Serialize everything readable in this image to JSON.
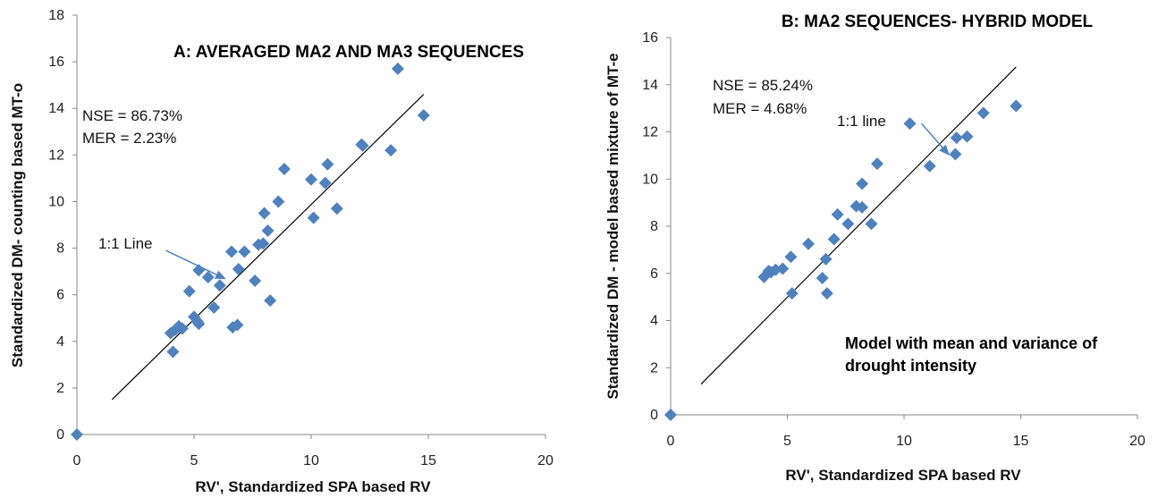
{
  "chart_data": [
    {
      "type": "scatter",
      "title": "A:   AVERAGED    MA2 AND MA3   SEQUENCES",
      "xlabel": "RV',  Standardized SPA based RV",
      "ylabel": "Standardized DM- counting based MT-o",
      "xlim": [
        0,
        20
      ],
      "ylim": [
        0,
        18
      ],
      "xticks": [
        "0",
        "5",
        "10",
        "15",
        "20"
      ],
      "yticks": [
        "0",
        "2",
        "4",
        "6",
        "8",
        "10",
        "12",
        "14",
        "16",
        "18"
      ],
      "grid": false,
      "marker_color": "#4f81bd",
      "stats": [
        "NSE = 86.73%",
        "MER = 2.23%"
      ],
      "line_label": "1:1 Line",
      "line_endpoints": [
        [
          1.5,
          1.5
        ],
        [
          14.8,
          14.6
        ]
      ],
      "arrow_from": [
        3.8,
        7.9
      ],
      "arrow_to": [
        6.3,
        6.7
      ],
      "points": [
        [
          0,
          0
        ],
        [
          4.0,
          4.35
        ],
        [
          4.2,
          4.5
        ],
        [
          4.35,
          4.65
        ],
        [
          4.5,
          4.55
        ],
        [
          4.1,
          3.55
        ],
        [
          4.8,
          6.15
        ],
        [
          5.0,
          5.05
        ],
        [
          5.2,
          4.75
        ],
        [
          5.15,
          4.85
        ],
        [
          5.2,
          7.05
        ],
        [
          5.6,
          6.75
        ],
        [
          5.85,
          5.45
        ],
        [
          6.1,
          6.4
        ],
        [
          6.6,
          7.85
        ],
        [
          6.65,
          4.6
        ],
        [
          6.85,
          4.7
        ],
        [
          6.9,
          7.1
        ],
        [
          7.15,
          7.85
        ],
        [
          7.6,
          6.6
        ],
        [
          7.75,
          8.15
        ],
        [
          7.95,
          8.2
        ],
        [
          8.0,
          9.5
        ],
        [
          8.15,
          8.75
        ],
        [
          8.25,
          5.75
        ],
        [
          8.6,
          10.0
        ],
        [
          8.85,
          11.4
        ],
        [
          10.0,
          10.95
        ],
        [
          10.1,
          9.3
        ],
        [
          10.6,
          10.8
        ],
        [
          10.7,
          11.6
        ],
        [
          11.1,
          9.7
        ],
        [
          12.15,
          12.45
        ],
        [
          12.2,
          12.4
        ],
        [
          13.4,
          12.2
        ],
        [
          13.7,
          15.7
        ],
        [
          14.8,
          13.7
        ]
      ]
    },
    {
      "type": "scatter",
      "title": "B:  MA2 SEQUENCES- HYBRID MODEL",
      "xlabel": "RV', Standardized SPA based RV",
      "ylabel": "Standardized DM - model based mixture of MT-e",
      "xlim": [
        0,
        20
      ],
      "ylim": [
        0,
        16
      ],
      "xticks": [
        "0",
        "5",
        "10",
        "15",
        "20"
      ],
      "yticks": [
        "0",
        "2",
        "4",
        "6",
        "8",
        "10",
        "12",
        "14",
        "16"
      ],
      "grid": false,
      "marker_color": "#4f81bd",
      "stats": [
        "NSE = 85.24%",
        "MER = 4.68%"
      ],
      "line_label": "1:1 line",
      "annotation": [
        "Model  with mean and variance of",
        "drought intensity"
      ],
      "line_endpoints": [
        [
          1.3,
          1.3
        ],
        [
          14.8,
          14.75
        ]
      ],
      "arrow_from": [
        10.75,
        12.35
      ],
      "arrow_to": [
        11.9,
        11.05
      ],
      "points": [
        [
          0,
          0
        ],
        [
          4.0,
          5.85
        ],
        [
          4.2,
          6.1
        ],
        [
          4.3,
          6.05
        ],
        [
          4.5,
          6.15
        ],
        [
          4.8,
          6.2
        ],
        [
          5.2,
          5.15
        ],
        [
          5.15,
          6.7
        ],
        [
          5.9,
          7.25
        ],
        [
          6.5,
          5.8
        ],
        [
          6.65,
          6.6
        ],
        [
          6.7,
          5.15
        ],
        [
          7.0,
          7.45
        ],
        [
          7.15,
          8.5
        ],
        [
          7.6,
          8.1
        ],
        [
          7.95,
          8.85
        ],
        [
          8.2,
          8.8
        ],
        [
          8.2,
          9.8
        ],
        [
          8.6,
          8.1
        ],
        [
          8.85,
          10.65
        ],
        [
          10.25,
          12.35
        ],
        [
          11.1,
          10.55
        ],
        [
          12.2,
          11.05
        ],
        [
          12.25,
          11.75
        ],
        [
          12.7,
          11.8
        ],
        [
          13.4,
          12.8
        ],
        [
          14.8,
          13.1
        ]
      ]
    }
  ]
}
